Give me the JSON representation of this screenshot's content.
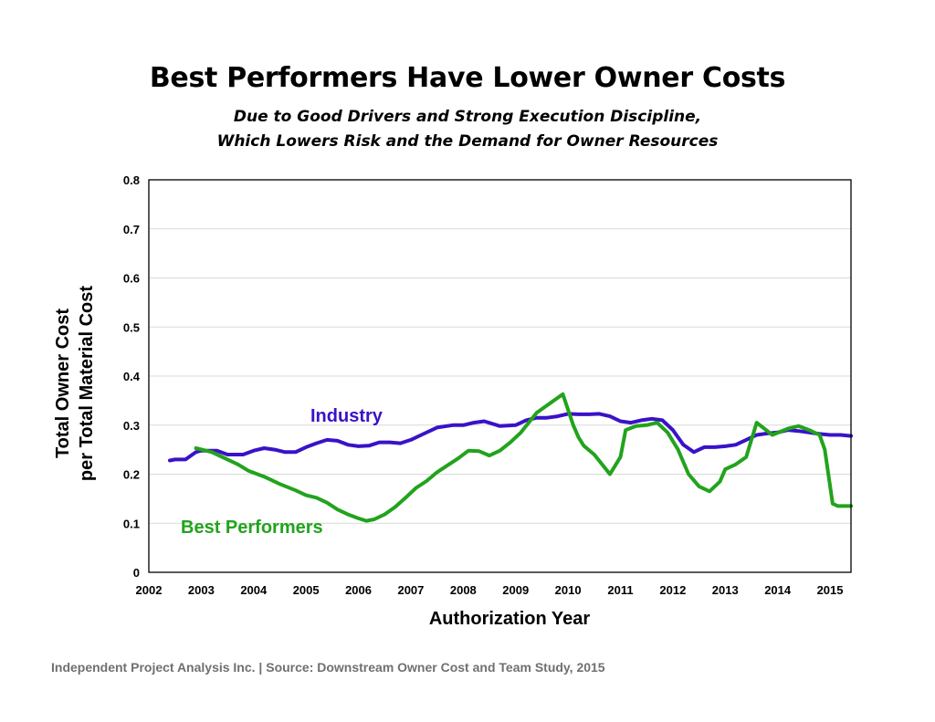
{
  "title": "Best Performers Have Lower Owner Costs",
  "subtitle_line1": "Due to Good Drivers and Strong Execution Discipline,",
  "subtitle_line2": "Which Lowers Risk and the Demand for Owner Resources",
  "footer": "Independent Project Analysis Inc. | Source: Downstream Owner Cost and Team Study, 2015",
  "colors": {
    "industry": "#3a12c8",
    "best_performers": "#22a31c",
    "grid": "#d9d9d9"
  },
  "chart_data": {
    "type": "line",
    "xlabel": "Authorization Year",
    "ylabel_line1": "Total  Owner Cost",
    "ylabel_line2": "per Total Material Cost",
    "xlim": [
      2002,
      2015.4
    ],
    "ylim": [
      0,
      0.8
    ],
    "xticks": [
      2002,
      2003,
      2004,
      2005,
      2006,
      2007,
      2008,
      2009,
      2010,
      2011,
      2012,
      2013,
      2014,
      2015
    ],
    "yticks": [
      0,
      0.1,
      0.2,
      0.3,
      0.4,
      0.5,
      0.6,
      0.7,
      0.8
    ],
    "ytick_labels": [
      "0",
      "0.1",
      "0.2",
      "0.3",
      "0.4",
      "0.5",
      "0.6",
      "0.7",
      "0.8"
    ],
    "grid": "horizontal",
    "series": [
      {
        "name": "Industry",
        "color": "#3a12c8",
        "x": [
          2002.4,
          2002.5,
          2002.7,
          2002.9,
          2003.0,
          2003.3,
          2003.5,
          2003.8,
          2004.0,
          2004.2,
          2004.4,
          2004.6,
          2004.8,
          2005.0,
          2005.2,
          2005.4,
          2005.6,
          2005.8,
          2006.0,
          2006.2,
          2006.4,
          2006.6,
          2006.8,
          2007.0,
          2007.2,
          2007.5,
          2007.8,
          2008.0,
          2008.2,
          2008.4,
          2008.7,
          2009.0,
          2009.2,
          2009.4,
          2009.6,
          2009.8,
          2010.0,
          2010.2,
          2010.4,
          2010.6,
          2010.8,
          2011.0,
          2011.2,
          2011.4,
          2011.6,
          2011.8,
          2012.0,
          2012.2,
          2012.4,
          2012.6,
          2012.8,
          2013.0,
          2013.2,
          2013.4,
          2013.6,
          2013.8,
          2014.0,
          2014.2,
          2014.4,
          2014.6,
          2014.8,
          2015.0,
          2015.2,
          2015.4
        ],
        "y": [
          0.228,
          0.23,
          0.23,
          0.245,
          0.248,
          0.248,
          0.24,
          0.24,
          0.248,
          0.253,
          0.25,
          0.245,
          0.245,
          0.255,
          0.263,
          0.27,
          0.268,
          0.26,
          0.257,
          0.258,
          0.265,
          0.265,
          0.263,
          0.27,
          0.28,
          0.295,
          0.3,
          0.3,
          0.305,
          0.308,
          0.298,
          0.3,
          0.31,
          0.315,
          0.315,
          0.318,
          0.323,
          0.322,
          0.322,
          0.323,
          0.318,
          0.308,
          0.305,
          0.31,
          0.313,
          0.31,
          0.29,
          0.26,
          0.245,
          0.255,
          0.255,
          0.257,
          0.26,
          0.27,
          0.28,
          0.283,
          0.285,
          0.29,
          0.288,
          0.285,
          0.282,
          0.28,
          0.28,
          0.278
        ]
      },
      {
        "name": "Best Performers",
        "color": "#22a31c",
        "x": [
          2002.9,
          2003.2,
          2003.4,
          2003.7,
          2003.9,
          2004.2,
          2004.5,
          2004.8,
          2005.0,
          2005.2,
          2005.4,
          2005.6,
          2005.8,
          2006.0,
          2006.15,
          2006.3,
          2006.5,
          2006.7,
          2006.9,
          2007.1,
          2007.3,
          2007.5,
          2007.7,
          2007.9,
          2008.1,
          2008.3,
          2008.5,
          2008.7,
          2008.9,
          2009.1,
          2009.4,
          2009.7,
          2009.9,
          2010.1,
          2010.2,
          2010.3,
          2010.5,
          2010.8,
          2011.0,
          2011.1,
          2011.3,
          2011.5,
          2011.7,
          2011.9,
          2012.1,
          2012.3,
          2012.5,
          2012.7,
          2012.9,
          2013.0,
          2013.2,
          2013.4,
          2013.6,
          2013.9,
          2014.2,
          2014.4,
          2014.6,
          2014.8,
          2014.9,
          2015.05,
          2015.15,
          2015.25,
          2015.4
        ],
        "y": [
          0.253,
          0.245,
          0.235,
          0.22,
          0.207,
          0.195,
          0.18,
          0.167,
          0.157,
          0.152,
          0.142,
          0.128,
          0.118,
          0.11,
          0.105,
          0.108,
          0.118,
          0.133,
          0.152,
          0.172,
          0.186,
          0.204,
          0.218,
          0.232,
          0.248,
          0.247,
          0.238,
          0.248,
          0.265,
          0.285,
          0.325,
          0.348,
          0.363,
          0.3,
          0.275,
          0.258,
          0.24,
          0.2,
          0.235,
          0.29,
          0.298,
          0.3,
          0.305,
          0.285,
          0.25,
          0.2,
          0.175,
          0.165,
          0.185,
          0.21,
          0.22,
          0.235,
          0.305,
          0.28,
          0.293,
          0.298,
          0.29,
          0.28,
          0.25,
          0.14,
          0.135,
          0.135,
          0.135
        ]
      }
    ]
  }
}
